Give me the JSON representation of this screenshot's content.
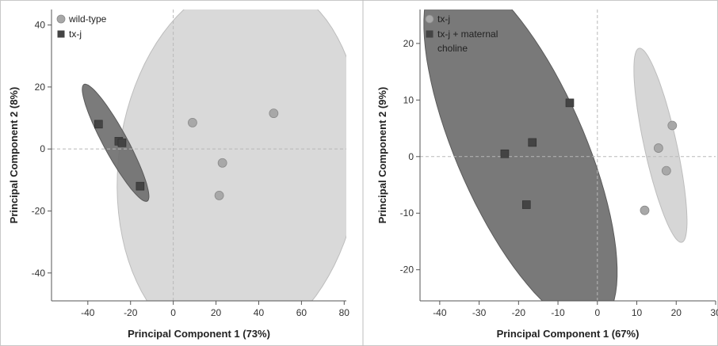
{
  "chart_data": [
    {
      "type": "scatter",
      "xlabel": "Principal Component 1 (73%)",
      "ylabel": "Principal Component 2 (8%)",
      "xlim": [
        -57,
        81
      ],
      "ylim": [
        -49,
        45
      ],
      "xticks": [
        -40,
        -20,
        0,
        20,
        40,
        60,
        80
      ],
      "yticks": [
        -40,
        -20,
        0,
        20,
        40
      ],
      "xtick_labels": [
        "-40",
        "-20",
        "0",
        "20",
        "40",
        "60",
        "80"
      ],
      "ytick_labels": [
        "-40",
        "-20",
        "0",
        "20",
        "40"
      ],
      "grid": false,
      "reference_lines": "dashed at x=0 and y=0",
      "legend_placement": "top-left",
      "series": [
        {
          "name": "wild-type",
          "marker": "circle",
          "color": "#a8a8a8",
          "points": [
            [
              9,
              8.5
            ],
            [
              47,
              11.5
            ],
            [
              23,
              -4.5
            ],
            [
              21.5,
              -15
            ]
          ],
          "ellipse": {
            "cx": 31,
            "cy": -5,
            "rx": 62,
            "ry": 55,
            "angle_deg": 56,
            "fill": "#d6d6d6"
          }
        },
        {
          "name": "tx-j",
          "marker": "square",
          "color": "#444444",
          "points": [
            [
              -35,
              8
            ],
            [
              -25.5,
              2.5
            ],
            [
              -24,
              2
            ],
            [
              -15.5,
              -12
            ]
          ],
          "ellipse": {
            "cx": -27,
            "cy": 2,
            "rx": 24,
            "ry": 5,
            "angle_deg": -51,
            "fill": "#707070"
          }
        }
      ]
    },
    {
      "type": "scatter",
      "xlabel": "Principal Component 1 (67%)",
      "ylabel": "Principal Component 2 (9%)",
      "xlim": [
        -45,
        30
      ],
      "ylim": [
        -25.5,
        26
      ],
      "xticks": [
        -40,
        -30,
        -20,
        -10,
        0,
        10,
        20,
        30
      ],
      "yticks": [
        -20,
        -10,
        0,
        10,
        20
      ],
      "xtick_labels": [
        "-40",
        "-30",
        "-20",
        "-10",
        "0",
        "10",
        "20",
        "30"
      ],
      "ytick_labels": [
        "-20",
        "-10",
        "0",
        "10",
        "20"
      ],
      "grid": false,
      "reference_lines": "dashed at x=0 and y=0",
      "legend_placement": "top-left",
      "series": [
        {
          "name": "tx-j",
          "marker": "circle",
          "color": "#a8a8a8",
          "points": [
            [
              19,
              5.5
            ],
            [
              15.5,
              1.5
            ],
            [
              17.5,
              -2.5
            ],
            [
              12,
              -9.5
            ]
          ],
          "ellipse": {
            "cx": 16,
            "cy": 2,
            "rx": 18,
            "ry": 4,
            "angle_deg": -72,
            "fill": "#d2d2d2"
          }
        },
        {
          "name": "tx-j + maternal choline",
          "marker": "square",
          "color": "#444444",
          "points": [
            [
              -7,
              9.5
            ],
            [
              -16.5,
              2.5
            ],
            [
              -23.5,
              0.5
            ],
            [
              -18,
              -8.5
            ]
          ],
          "ellipse": {
            "cx": -19.5,
            "cy": 1.5,
            "rx": 37,
            "ry": 15,
            "angle_deg": -55,
            "fill": "#6e6e6e"
          }
        }
      ]
    }
  ]
}
